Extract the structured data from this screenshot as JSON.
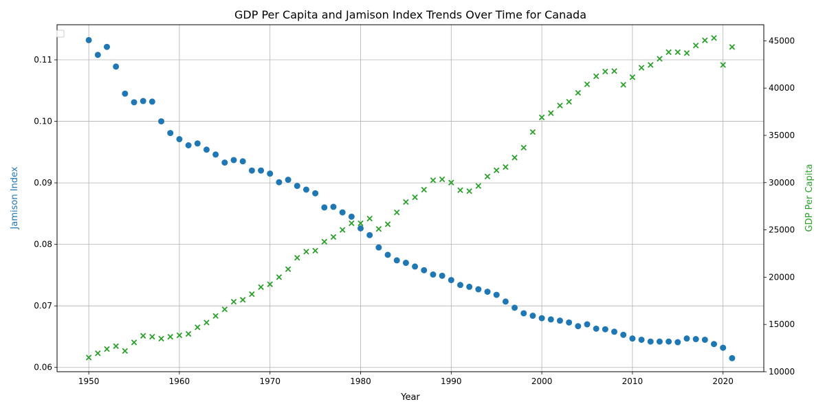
{
  "chart_data": {
    "type": "scatter",
    "title": "GDP Per Capita and Jamison Index Trends Over Time for Canada",
    "xlabel": "Year",
    "ylabel_left": "Jamison Index",
    "ylabel_right": "GDP Per Capita",
    "xlim": [
      1946.5,
      2024.5
    ],
    "ylim_left": [
      0.0593,
      0.1157
    ],
    "ylim_right": [
      10000,
      46700
    ],
    "x_ticks": [
      1950,
      1960,
      1970,
      1980,
      1990,
      2000,
      2010,
      2020
    ],
    "y_left_ticks": [
      0.06,
      0.07,
      0.08,
      0.09,
      0.1,
      0.11
    ],
    "y_right_ticks": [
      10000,
      15000,
      20000,
      25000,
      30000,
      35000,
      40000,
      45000
    ],
    "grid": true,
    "legend": "top-left",
    "colors": {
      "jamison": "#1f77b4",
      "gdp": "#2ca02c"
    },
    "x": [
      1950,
      1951,
      1952,
      1953,
      1954,
      1955,
      1956,
      1957,
      1958,
      1959,
      1960,
      1961,
      1962,
      1963,
      1964,
      1965,
      1966,
      1967,
      1968,
      1969,
      1970,
      1971,
      1972,
      1973,
      1974,
      1975,
      1976,
      1977,
      1978,
      1979,
      1980,
      1981,
      1982,
      1983,
      1984,
      1985,
      1986,
      1987,
      1988,
      1989,
      1990,
      1991,
      1992,
      1993,
      1994,
      1995,
      1996,
      1997,
      1998,
      1999,
      2000,
      2001,
      2002,
      2003,
      2004,
      2005,
      2006,
      2007,
      2008,
      2009,
      2010,
      2011,
      2012,
      2013,
      2014,
      2015,
      2016,
      2017,
      2018,
      2019,
      2020,
      2021
    ],
    "series": [
      {
        "axis": "left",
        "marker": "circle",
        "values": [
          0.1132,
          0.1108,
          0.1121,
          0.1089,
          0.1045,
          0.1031,
          0.1033,
          0.1032,
          0.1,
          0.0981,
          0.0971,
          0.0961,
          0.0964,
          0.0954,
          0.0946,
          0.0933,
          0.0937,
          0.0935,
          0.092,
          0.092,
          0.0915,
          0.0901,
          0.0905,
          0.0895,
          0.0889,
          0.0883,
          0.086,
          0.0861,
          0.0852,
          0.0845,
          0.0826,
          0.0815,
          0.0795,
          0.0783,
          0.0774,
          0.077,
          0.0764,
          0.0758,
          0.0751,
          0.0749,
          0.0742,
          0.0734,
          0.0731,
          0.0727,
          0.0723,
          0.0718,
          0.0707,
          0.0697,
          0.0688,
          0.0684,
          0.068,
          0.0678,
          0.0676,
          0.0673,
          0.0667,
          0.067,
          0.0663,
          0.0662,
          0.0658,
          0.0653,
          0.0647,
          0.0645,
          0.0642,
          0.0642,
          0.0642,
          0.0641,
          0.0647,
          0.0646,
          0.0645,
          0.0638,
          0.0632,
          0.0615
        ]
      },
      {
        "axis": "right",
        "marker": "x",
        "values": [
          11500,
          11950,
          12400,
          12700,
          12200,
          13100,
          13800,
          13700,
          13500,
          13700,
          13850,
          14000,
          14700,
          15200,
          15900,
          16600,
          17400,
          17600,
          18200,
          18950,
          19250,
          20000,
          20850,
          22050,
          22700,
          22800,
          23750,
          24250,
          25000,
          25700,
          25700,
          26200,
          25100,
          25600,
          26850,
          27950,
          28450,
          29250,
          30250,
          30350,
          30000,
          29200,
          29100,
          29650,
          30650,
          31300,
          31650,
          32650,
          33700,
          35350,
          36900,
          37350,
          38150,
          38550,
          39500,
          40400,
          41250,
          41750,
          41800,
          40350,
          41150,
          42150,
          42450,
          43100,
          43800,
          43800,
          43700,
          44500,
          45050,
          45300,
          42450,
          44350
        ]
      }
    ]
  }
}
